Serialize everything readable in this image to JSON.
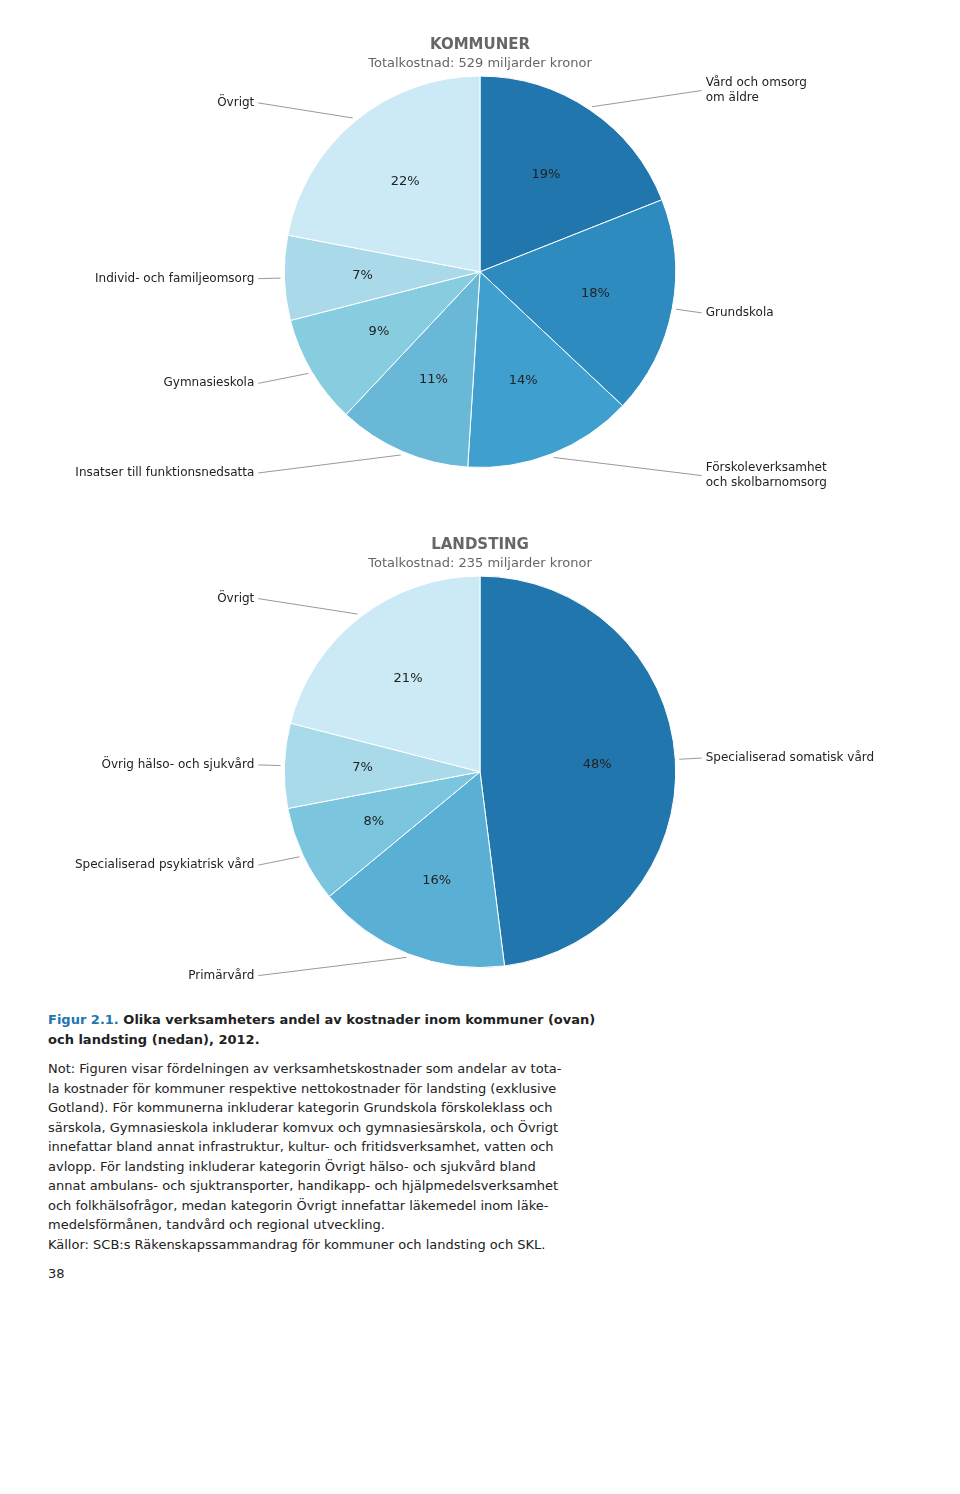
{
  "chart_data": [
    {
      "type": "pie",
      "title": "KOMMUNER",
      "subtitle": "Totalkostnad: 529 miljarder kronor",
      "categories": [
        "Vård och omsorg\nom äldre",
        "Grundskola",
        "Förskoleverksamhet\noch skolbarnomsorg",
        "Insatser till funktionsnedsatta",
        "Gymnasieskola",
        "Individ- och familjeomsorg",
        "Övrigt"
      ],
      "values": [
        19,
        18,
        14,
        11,
        9,
        7,
        22
      ],
      "value_labels": [
        "19%",
        "18%",
        "14%",
        "11%",
        "9%",
        "7%",
        "22%"
      ],
      "colors": [
        "#2176ae",
        "#2e8bbf",
        "#3fa0cf",
        "#6ab8d8",
        "#88cce0",
        "#aadaea",
        "#cceaf5"
      ],
      "data_labels": true
    },
    {
      "type": "pie",
      "title": "LANDSTING",
      "subtitle": "Totalkostnad: 235 miljarder kronor",
      "categories": [
        "Specialiserad somatisk vård",
        "Primärvård",
        "Specialiserad psykiatrisk vård",
        "Övrig hälso- och sjukvård",
        "Övrigt"
      ],
      "values": [
        48,
        16,
        8,
        7,
        21
      ],
      "value_labels": [
        "48%",
        "16%",
        "8%",
        "7%",
        "21%"
      ],
      "colors": [
        "#2176ae",
        "#5ab0d4",
        "#7cc5de",
        "#a8daea",
        "#cceaf5"
      ],
      "data_labels": true,
      "annotations": [
        [
          {
            "text": "Figur 2.1.",
            "color": "#2176ae"
          },
          {
            "text": "Olika verksamheters andel av kostnader inom kommuner (ovan)"
          }
        ],
        [
          {
            "text": "och landsting (nedan), 2012."
          }
        ],
        [
          {
            "text": "Not: Figuren visar fördelningen av verksamhetskostnader som andelar av tota-"
          }
        ],
        [
          {
            "text": "la kostnader för kommuner respektive nettokostnader för landsting (exklusive"
          }
        ],
        [
          {
            "text": "Gotland). För kommunerna inkluderar kategorin Grundskola förskoleklass och"
          }
        ],
        [
          {
            "text": "särskola, Gymnasieskola inkluderar komvux och gymnasiesärskola, och Övrigt"
          }
        ],
        [
          {
            "text": "innefattar bland annat infrastruktur, kultur- och fritidsverksamhet, vatten och"
          }
        ],
        [
          {
            "text": "avlopp. För landsting inkluderar kategorin Övrigt hälso- och sjukvård bland"
          }
        ],
        [
          {
            "text": "annat ambulans- och sjuktransporter, handikapp- och hjälpmedelsverksamhet"
          }
        ],
        [
          {
            "text": "och folkhälsofrågor, medan kategorin Övrigt innefattar läkemedel inom läke-"
          }
        ],
        [
          {
            "text": "medelsförmånen, tandvård och regional utveckling."
          }
        ],
        [
          {
            "text": "Källor: SCB:s Räkenskapssammandrag för kommuner och landsting och SKL."
          }
        ],
        [
          {
            "text": "38"
          }
        ]
      ]
    }
  ]
}
